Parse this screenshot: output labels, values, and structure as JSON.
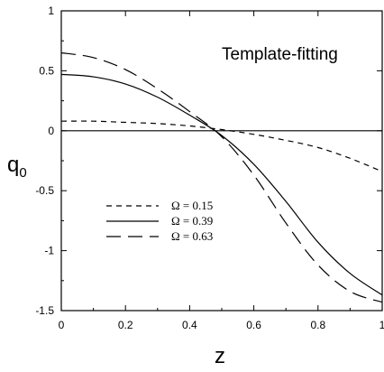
{
  "chart_data": {
    "type": "line",
    "title": "",
    "annotation": "Template-fitting",
    "xlabel": "z",
    "ylabel_main": "q",
    "ylabel_sub": "0",
    "xlim": [
      0,
      1
    ],
    "ylim": [
      -1.5,
      1
    ],
    "x_ticks": [
      0,
      0.2,
      0.4,
      0.6,
      0.8,
      1
    ],
    "x_tick_labels": [
      "0",
      "0.2",
      "0.4",
      "0.6",
      "0.8",
      "1"
    ],
    "y_ticks": [
      -1.5,
      -1,
      -0.5,
      0,
      0.5,
      1
    ],
    "y_tick_labels": [
      "-1.5",
      "-1",
      "-0.5",
      "0",
      "0.5",
      "1"
    ],
    "grid": false,
    "legend_position": "lower-left",
    "reference_line_y": 0,
    "series": [
      {
        "name": "Ω = 0.15",
        "dash": "short-dash",
        "x": [
          0,
          0.1,
          0.2,
          0.3,
          0.4,
          0.5,
          0.6,
          0.7,
          0.8,
          0.9,
          1.0
        ],
        "y": [
          0.08,
          0.08,
          0.07,
          0.06,
          0.04,
          0.01,
          -0.03,
          -0.08,
          -0.14,
          -0.23,
          -0.34
        ]
      },
      {
        "name": "Ω = 0.39",
        "dash": "solid",
        "x": [
          0,
          0.1,
          0.2,
          0.3,
          0.4,
          0.5,
          0.6,
          0.7,
          0.8,
          0.9,
          1.0
        ],
        "y": [
          0.47,
          0.45,
          0.39,
          0.28,
          0.13,
          -0.04,
          -0.28,
          -0.59,
          -0.93,
          -1.19,
          -1.37
        ]
      },
      {
        "name": "Ω = 0.63",
        "dash": "long-dash",
        "x": [
          0,
          0.1,
          0.2,
          0.3,
          0.4,
          0.5,
          0.6,
          0.7,
          0.8,
          0.9,
          1.0
        ],
        "y": [
          0.65,
          0.61,
          0.51,
          0.35,
          0.16,
          -0.05,
          -0.37,
          -0.77,
          -1.12,
          -1.34,
          -1.43
        ]
      }
    ]
  }
}
